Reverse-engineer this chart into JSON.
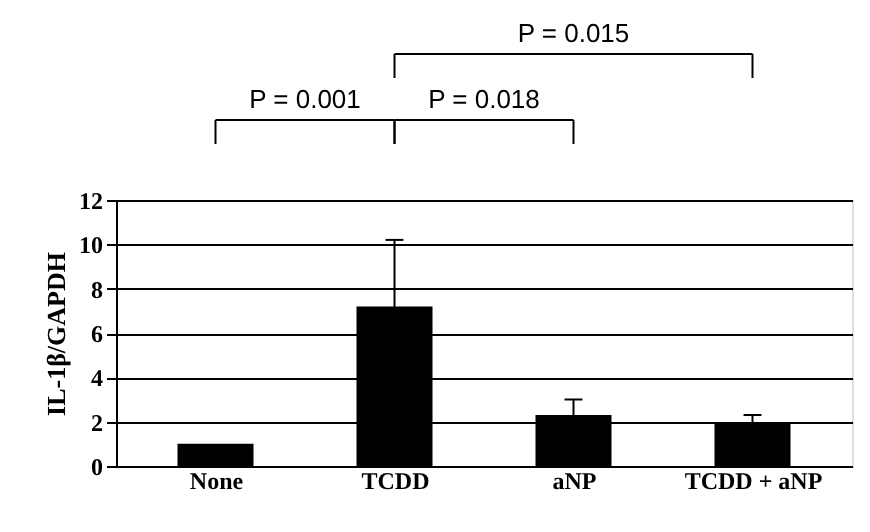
{
  "chart_data": {
    "type": "bar",
    "ylabel": "IL-1β/GAPDH",
    "categories": [
      "None",
      "TCDD",
      "aNP",
      "TCDD + aNP"
    ],
    "values": [
      1.0,
      7.2,
      2.3,
      1.9
    ],
    "errors": [
      null,
      3.0,
      0.7,
      0.4
    ],
    "color": "#000000",
    "ylim": [
      0,
      12
    ],
    "yticks": [
      0,
      2,
      4,
      6,
      8,
      10,
      12
    ],
    "grid": "y",
    "annotations": [
      "P = 0.001",
      "P = 0.018",
      "P = 0.015"
    ]
  }
}
